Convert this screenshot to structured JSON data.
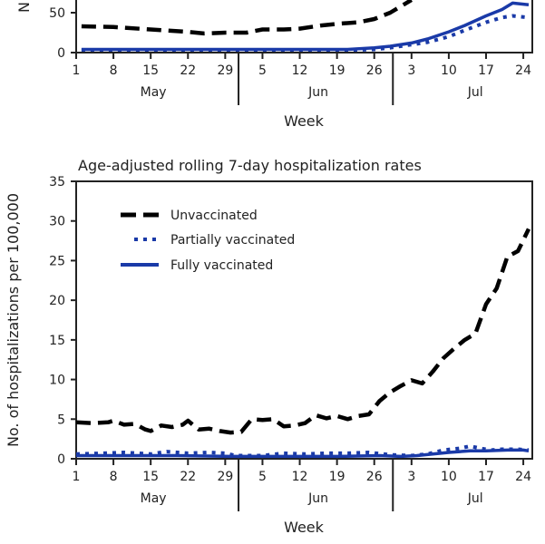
{
  "chart_data": [
    {
      "type": "line",
      "title": "",
      "xlabel": "Week",
      "ylabel": "N",
      "ylim": [
        0,
        60
      ],
      "yticks": [
        "0",
        "50"
      ],
      "x_day_range": [
        1,
        86
      ],
      "xticks": [
        {
          "day": 1,
          "label": "1"
        },
        {
          "day": 8,
          "label": "8"
        },
        {
          "day": 15,
          "label": "15"
        },
        {
          "day": 22,
          "label": "22"
        },
        {
          "day": 29,
          "label": "29"
        },
        {
          "day": 36,
          "label": "5"
        },
        {
          "day": 43,
          "label": "12"
        },
        {
          "day": 50,
          "label": "19"
        },
        {
          "day": 57,
          "label": "26"
        },
        {
          "day": 64,
          "label": "3"
        },
        {
          "day": 71,
          "label": "10"
        },
        {
          "day": 78,
          "label": "17"
        },
        {
          "day": 85,
          "label": "24"
        }
      ],
      "months": [
        {
          "label": "May",
          "center_day": 15.5
        },
        {
          "label": "Jun",
          "center_day": 46.5
        },
        {
          "label": "Jul",
          "center_day": 76
        }
      ],
      "month_separators": [
        31.5,
        60.5
      ],
      "series": [
        {
          "name": "Unvaccinated",
          "style": "dashed",
          "color": "#000000",
          "x": [
            2,
            8,
            15,
            22,
            25,
            29,
            33,
            36,
            40,
            43,
            47,
            50,
            54,
            57,
            60,
            62,
            64
          ],
          "values": [
            33,
            32,
            29,
            26,
            24,
            25,
            25,
            29,
            29,
            30,
            34,
            36,
            38,
            42,
            50,
            58,
            66
          ]
        },
        {
          "name": "Partially vaccinated",
          "style": "dotted",
          "color": "#1a3aa8",
          "x": [
            2,
            15,
            29,
            43,
            52,
            57,
            60,
            64,
            67,
            71,
            74,
            78,
            81,
            83,
            86
          ],
          "values": [
            3,
            3,
            3,
            3,
            3,
            4,
            6,
            10,
            13,
            20,
            28,
            38,
            44,
            46,
            44
          ]
        },
        {
          "name": "Fully vaccinated",
          "style": "solid",
          "color": "#1a3aa8",
          "x": [
            2,
            15,
            29,
            43,
            52,
            57,
            60,
            64,
            67,
            71,
            74,
            78,
            81,
            83,
            86
          ],
          "values": [
            4,
            4,
            4,
            4,
            4,
            6,
            8,
            12,
            17,
            26,
            34,
            46,
            54,
            62,
            60
          ]
        }
      ]
    },
    {
      "type": "line",
      "title": "Age-adjusted rolling 7-day hospitalization rates",
      "xlabel": "Week",
      "ylabel": "No. of hospitalizations per 100,000",
      "ylim": [
        0,
        35
      ],
      "yticks": [
        "0",
        "5",
        "10",
        "15",
        "20",
        "25",
        "30",
        "35"
      ],
      "x_day_range": [
        1,
        86
      ],
      "xticks": [
        {
          "day": 1,
          "label": "1"
        },
        {
          "day": 8,
          "label": "8"
        },
        {
          "day": 15,
          "label": "15"
        },
        {
          "day": 22,
          "label": "22"
        },
        {
          "day": 29,
          "label": "29"
        },
        {
          "day": 36,
          "label": "5"
        },
        {
          "day": 43,
          "label": "12"
        },
        {
          "day": 50,
          "label": "19"
        },
        {
          "day": 57,
          "label": "26"
        },
        {
          "day": 64,
          "label": "3"
        },
        {
          "day": 71,
          "label": "10"
        },
        {
          "day": 78,
          "label": "17"
        },
        {
          "day": 85,
          "label": "24"
        }
      ],
      "months": [
        {
          "label": "May",
          "center_day": 15.5
        },
        {
          "label": "Jun",
          "center_day": 46.5
        },
        {
          "label": "Jul",
          "center_day": 76
        }
      ],
      "month_separators": [
        31.5,
        60.5
      ],
      "legend": {
        "placement": "top-left",
        "entries": [
          "Unvaccinated",
          "Partially vaccinated",
          "Fully vaccinated"
        ]
      },
      "series": [
        {
          "name": "Unvaccinated",
          "style": "dashed",
          "color": "#000000",
          "x": [
            1,
            4,
            7,
            8,
            10,
            12,
            14,
            15,
            17,
            19,
            21,
            22,
            24,
            26,
            28,
            30,
            32,
            34,
            36,
            38,
            40,
            42,
            44,
            46,
            48,
            50,
            52,
            54,
            56,
            58,
            60,
            62,
            64,
            66,
            68,
            70,
            72,
            74,
            76,
            78,
            80,
            82,
            84,
            86
          ],
          "values": [
            4.6,
            4.5,
            4.6,
            4.8,
            4.3,
            4.4,
            3.7,
            3.5,
            4.2,
            4.0,
            4.3,
            4.8,
            3.7,
            3.8,
            3.5,
            3.3,
            3.4,
            5.0,
            4.9,
            5.0,
            4.1,
            4.2,
            4.5,
            5.5,
            5.1,
            5.4,
            5.0,
            5.4,
            5.6,
            7.3,
            8.4,
            9.2,
            9.9,
            9.5,
            11.0,
            12.7,
            13.9,
            15.0,
            15.8,
            19.5,
            21.5,
            25.5,
            26.2,
            29.0
          ]
        },
        {
          "name": "Partially vaccinated",
          "style": "dotted",
          "color": "#1a3aa8",
          "x": [
            1,
            6,
            10,
            15,
            18,
            22,
            26,
            29,
            31,
            36,
            40,
            44,
            48,
            52,
            56,
            60,
            64,
            67,
            70,
            73,
            75,
            77,
            79,
            81,
            84,
            86
          ],
          "values": [
            0.6,
            0.7,
            0.8,
            0.6,
            0.9,
            0.7,
            0.8,
            0.7,
            0.4,
            0.4,
            0.7,
            0.6,
            0.7,
            0.7,
            0.8,
            0.5,
            0.4,
            0.6,
            1.1,
            1.3,
            1.6,
            1.3,
            1.1,
            1.2,
            1.2,
            1.1
          ]
        },
        {
          "name": "Fully vaccinated",
          "style": "solid",
          "color": "#1a3aa8",
          "x": [
            1,
            10,
            20,
            30,
            40,
            50,
            58,
            62,
            65,
            68,
            71,
            75,
            78,
            82,
            85,
            86
          ],
          "values": [
            0.4,
            0.4,
            0.4,
            0.3,
            0.3,
            0.3,
            0.4,
            0.3,
            0.4,
            0.6,
            0.8,
            1.0,
            1.0,
            1.1,
            1.1,
            1.0
          ]
        }
      ]
    }
  ]
}
